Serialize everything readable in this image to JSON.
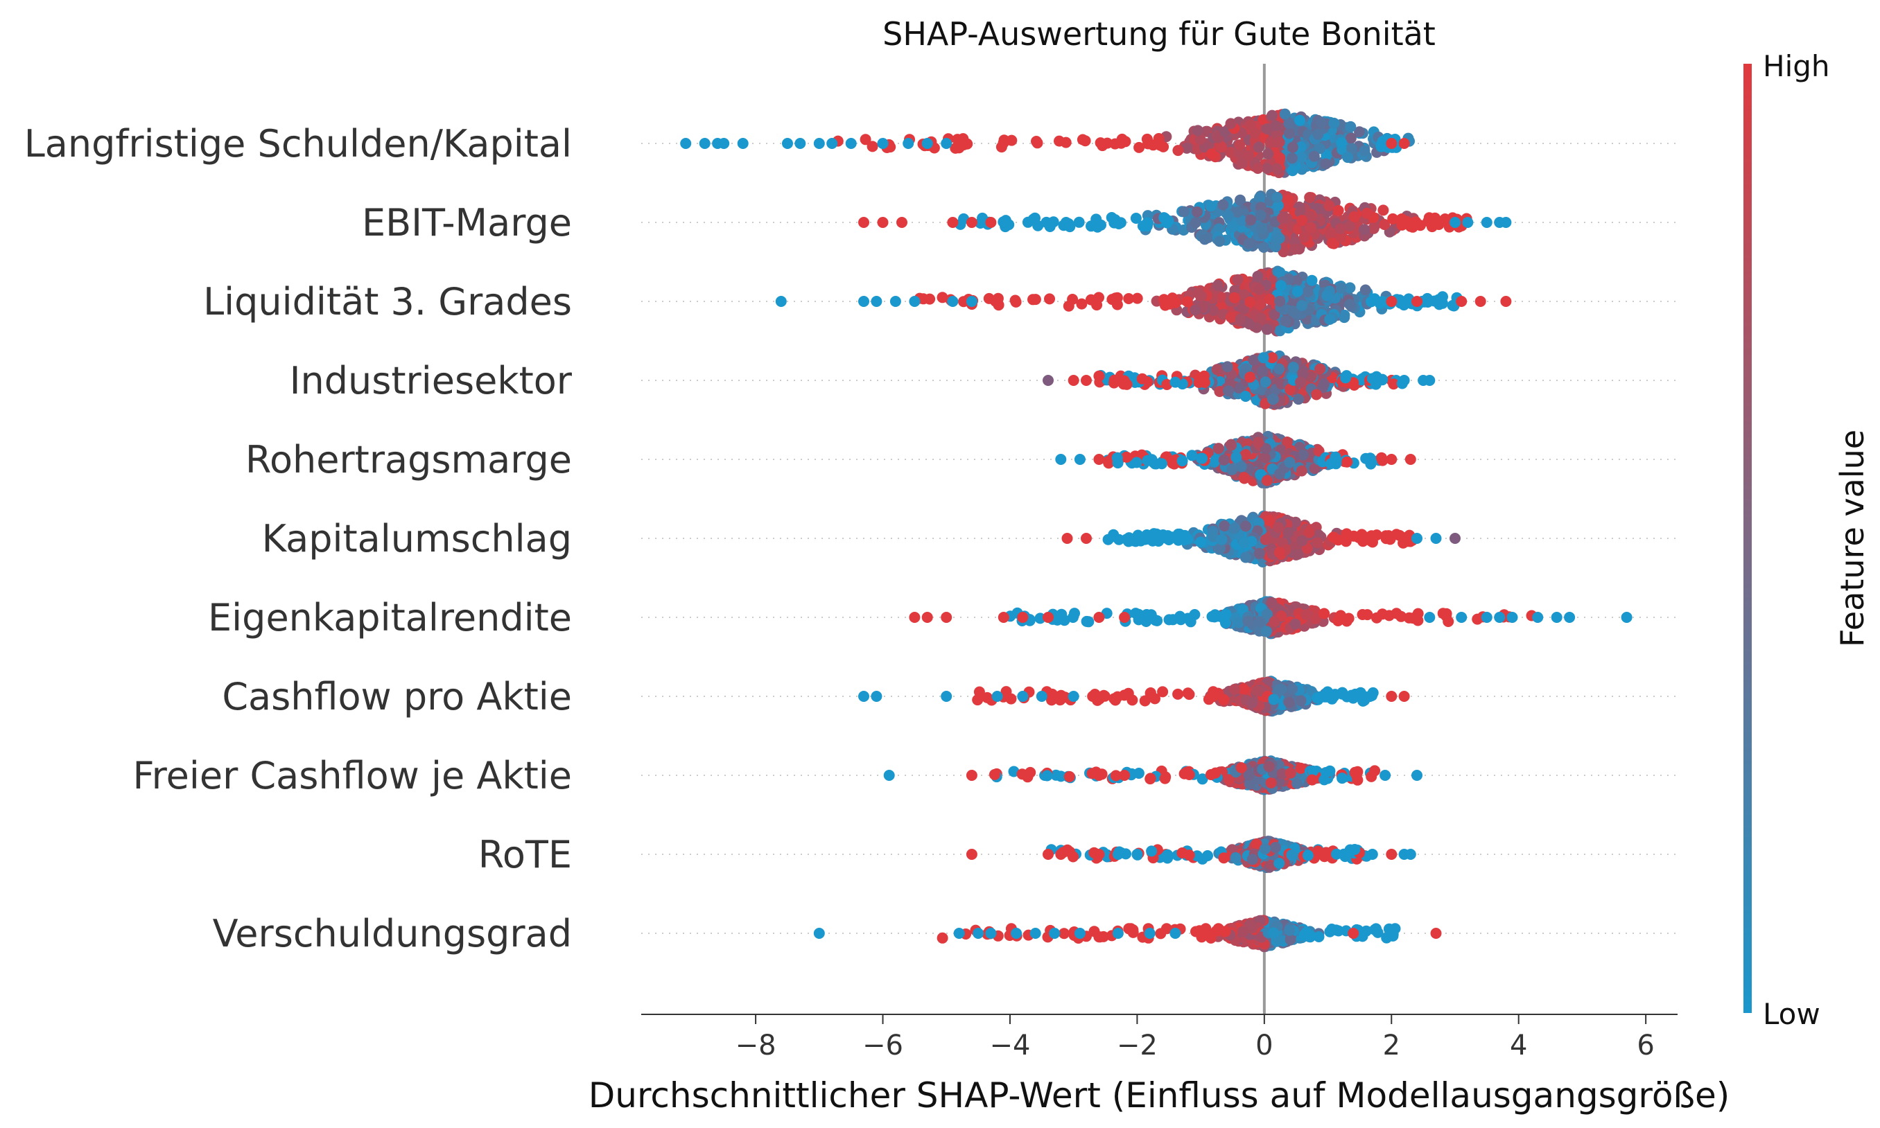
{
  "chart_data": {
    "type": "scatter",
    "title": "SHAP-Auswertung für Gute Bonität",
    "xlabel": "Durchschnittlicher SHAP-Wert (Einfluss auf Modellausgangsgröße)",
    "xlim": [
      -9.8,
      6.5
    ],
    "xticks": [
      -8,
      -6,
      -4,
      -2,
      0,
      2,
      4,
      6
    ],
    "xtick_labels": [
      "−8",
      "−6",
      "−4",
      "−2",
      "0",
      "2",
      "4",
      "6"
    ],
    "colorbar": {
      "title": "Feature value",
      "high_label": "High",
      "low_label": "Low"
    },
    "colors": {
      "high": "#e03a3e",
      "low": "#1a97cc",
      "mid": "#7e5b7e",
      "zero_line": "#999999",
      "grid": "#cccccc"
    },
    "features": [
      {
        "name": "Langfristige Schulden/Kapital",
        "min": -9.1,
        "max": 2.2,
        "core": [
          -1.2,
          1.8
        ],
        "width": 1.0,
        "mode": "neg-high",
        "outliers": [
          [
            -9.1,
            1
          ],
          [
            -8.8,
            1
          ],
          [
            -8.6,
            1
          ],
          [
            -8.5,
            1
          ],
          [
            -8.2,
            1
          ],
          [
            -7.5,
            1
          ],
          [
            -7.3,
            1
          ],
          [
            -7.0,
            1
          ],
          [
            -6.8,
            1
          ],
          [
            -6.5,
            1
          ],
          [
            -6.0,
            1
          ],
          [
            -5.6,
            1
          ],
          [
            -5.3,
            1
          ],
          [
            -5.0,
            1
          ],
          [
            2.0,
            0
          ],
          [
            2.2,
            0
          ]
        ]
      },
      {
        "name": "EBIT-Marge",
        "min": -6.3,
        "max": 3.8,
        "core": [
          -1.5,
          2.0
        ],
        "width": 1.0,
        "mode": "pos-high",
        "outliers": [
          [
            -6.3,
            0
          ],
          [
            -6.0,
            0
          ],
          [
            -5.7,
            0
          ],
          [
            -4.9,
            0
          ],
          [
            -4.6,
            0
          ],
          [
            -4.3,
            0
          ],
          [
            3.0,
            1
          ],
          [
            3.2,
            1
          ],
          [
            3.5,
            1
          ],
          [
            3.7,
            1
          ],
          [
            3.8,
            1
          ]
        ]
      },
      {
        "name": "Liquidität 3. Grades",
        "min": -7.6,
        "max": 3.8,
        "core": [
          -1.2,
          1.6
        ],
        "width": 1.0,
        "mode": "neg-high",
        "outliers": [
          [
            -7.6,
            1
          ],
          [
            -6.3,
            1
          ],
          [
            -6.1,
            1
          ],
          [
            -5.8,
            1
          ],
          [
            -5.5,
            1
          ],
          [
            -4.9,
            1
          ],
          [
            -4.6,
            1
          ],
          [
            2.0,
            0
          ],
          [
            2.4,
            0
          ],
          [
            3.1,
            0
          ],
          [
            3.4,
            0
          ],
          [
            3.8,
            0
          ]
        ]
      },
      {
        "name": "Industriesektor",
        "min": -3.4,
        "max": 2.6,
        "core": [
          -0.9,
          1.2
        ],
        "width": 0.85,
        "mode": "mixed",
        "outliers": [
          [
            -3.4,
            2
          ],
          [
            -3.0,
            0
          ],
          [
            -2.8,
            0
          ],
          [
            2.2,
            1
          ],
          [
            2.5,
            1
          ],
          [
            2.6,
            1
          ]
        ]
      },
      {
        "name": "Rohertragsmarge",
        "min": -3.2,
        "max": 2.3,
        "core": [
          -0.9,
          0.9
        ],
        "width": 0.8,
        "mode": "mixed",
        "outliers": [
          [
            -3.2,
            1
          ],
          [
            -2.9,
            1
          ],
          [
            -2.6,
            0
          ],
          [
            2.0,
            0
          ],
          [
            2.3,
            0
          ]
        ]
      },
      {
        "name": "Kapitalumschlag",
        "min": -3.1,
        "max": 3.0,
        "core": [
          -1.0,
          1.0
        ],
        "width": 0.8,
        "mode": "pos-high",
        "outliers": [
          [
            -3.1,
            0
          ],
          [
            -2.8,
            0
          ],
          [
            2.4,
            1
          ],
          [
            2.7,
            1
          ],
          [
            3.0,
            2
          ]
        ]
      },
      {
        "name": "Eigenkapitalrendite",
        "min": -5.5,
        "max": 5.7,
        "core": [
          -0.6,
          0.8
        ],
        "width": 0.55,
        "mode": "pos-high",
        "outliers": [
          [
            -5.5,
            0
          ],
          [
            -5.3,
            0
          ],
          [
            -5.0,
            0
          ],
          [
            -4.1,
            0
          ],
          [
            -3.8,
            0
          ],
          [
            -3.4,
            0
          ],
          [
            -2.6,
            0
          ],
          [
            -2.2,
            0
          ],
          [
            2.6,
            1
          ],
          [
            3.1,
            1
          ],
          [
            3.5,
            1
          ],
          [
            3.7,
            1
          ],
          [
            3.9,
            1
          ],
          [
            4.3,
            1
          ],
          [
            4.6,
            1
          ],
          [
            4.8,
            1
          ],
          [
            5.7,
            1
          ]
        ]
      },
      {
        "name": "Cashflow pro Aktie",
        "min": -6.3,
        "max": 2.2,
        "core": [
          -0.6,
          0.8
        ],
        "width": 0.5,
        "mode": "neg-high",
        "outliers": [
          [
            -6.3,
            1
          ],
          [
            -6.1,
            1
          ],
          [
            -5.0,
            1
          ],
          [
            -4.2,
            1
          ],
          [
            -3.8,
            1
          ],
          [
            -3.5,
            1
          ],
          [
            -3.3,
            0
          ],
          [
            -3.0,
            1
          ],
          [
            -2.7,
            0
          ],
          [
            2.0,
            0
          ],
          [
            2.2,
            0
          ]
        ]
      },
      {
        "name": "Freier Cashflow je Aktie",
        "min": -5.9,
        "max": 2.4,
        "core": [
          -0.6,
          0.7
        ],
        "width": 0.5,
        "mode": "mixed",
        "outliers": [
          [
            -5.9,
            1
          ],
          [
            -4.6,
            0
          ],
          [
            -2.6,
            0
          ],
          [
            -2.2,
            0
          ],
          [
            1.9,
            1
          ],
          [
            2.4,
            1
          ]
        ]
      },
      {
        "name": "RoTE",
        "min": -4.6,
        "max": 2.3,
        "core": [
          -0.5,
          0.6
        ],
        "width": 0.45,
        "mode": "mixed",
        "outliers": [
          [
            -4.6,
            0
          ],
          [
            -3.4,
            0
          ],
          [
            -3.2,
            0
          ],
          [
            -2.6,
            0
          ],
          [
            -2.3,
            1
          ],
          [
            -2.0,
            1
          ],
          [
            1.7,
            1
          ],
          [
            2.0,
            0
          ],
          [
            2.2,
            1
          ],
          [
            2.3,
            1
          ]
        ]
      },
      {
        "name": "Verschuldungsgrad",
        "min": -7.0,
        "max": 2.7,
        "core": [
          -0.6,
          0.6
        ],
        "width": 0.45,
        "mode": "neg-high",
        "outliers": [
          [
            -7.0,
            1
          ],
          [
            -4.8,
            1
          ],
          [
            -4.5,
            1
          ],
          [
            -4.3,
            1
          ],
          [
            -3.9,
            1
          ],
          [
            -3.6,
            1
          ],
          [
            -3.3,
            1
          ],
          [
            -2.9,
            1
          ],
          [
            -2.3,
            1
          ],
          [
            -1.8,
            1
          ],
          [
            -1.4,
            1
          ],
          [
            1.4,
            0
          ],
          [
            2.7,
            0
          ]
        ]
      }
    ]
  }
}
